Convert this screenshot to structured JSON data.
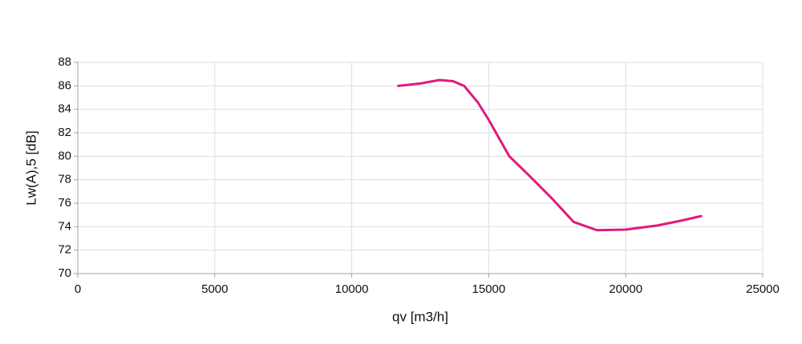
{
  "chart_data": {
    "type": "line",
    "x_label": "qv [m3/h]",
    "y_label": "Lw(A),5 [dB]",
    "x": [
      11700,
      12500,
      13200,
      13700,
      14100,
      14600,
      15000,
      15750,
      16500,
      17350,
      18100,
      18950,
      20000,
      21150,
      22000,
      22750
    ],
    "series": [
      {
        "name": "Lw(A),5",
        "color": "#e0197d",
        "values": [
          86.0,
          86.2,
          86.5,
          86.4,
          86.0,
          84.6,
          83.1,
          80.0,
          78.3,
          76.3,
          74.4,
          73.7,
          73.75,
          74.1,
          74.5,
          74.9
        ]
      }
    ],
    "xlim": [
      0,
      25000
    ],
    "xticks": [
      0,
      5000,
      10000,
      15000,
      20000,
      25000
    ],
    "ylim": [
      70,
      88
    ],
    "yticks": [
      70,
      72,
      74,
      76,
      78,
      80,
      82,
      84,
      86,
      88
    ],
    "grid": true
  }
}
